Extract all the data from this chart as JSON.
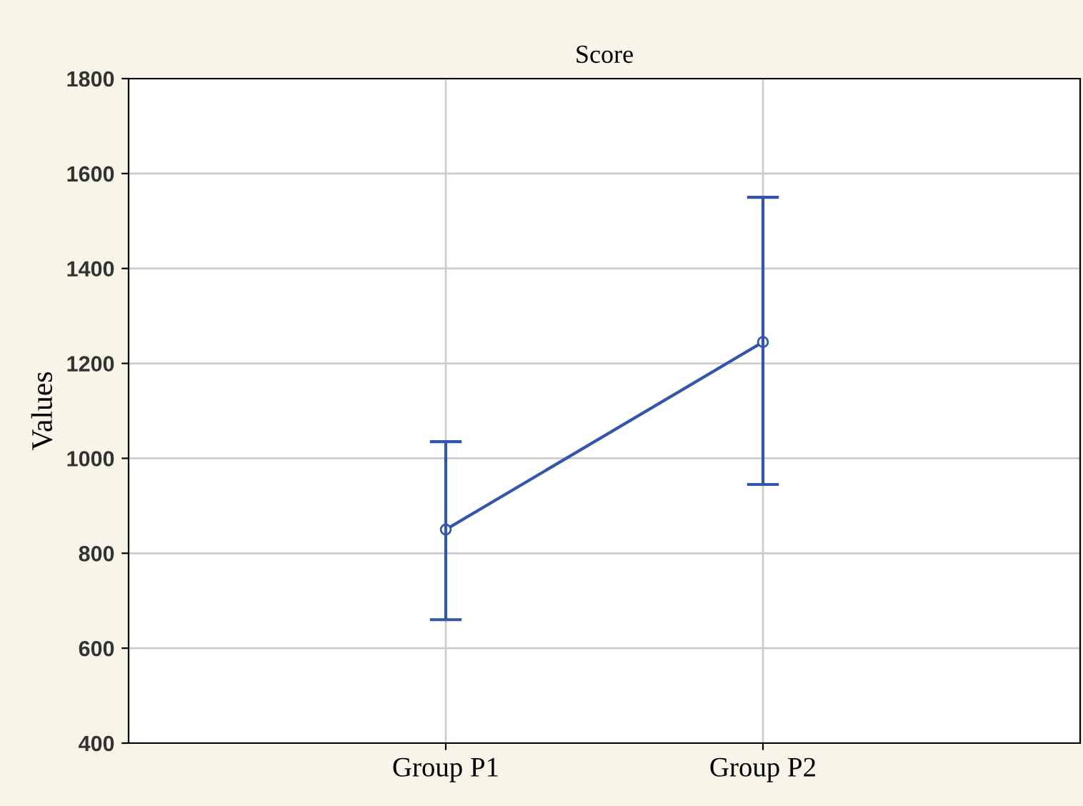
{
  "chart_data": {
    "type": "line",
    "title": "Score",
    "ylabel": "Values",
    "categories": [
      "Group P1",
      "Group P2"
    ],
    "series": [
      {
        "color": "#3355aa",
        "values": [
          850,
          1245
        ],
        "errors": [
          [
            660,
            1035
          ],
          [
            945,
            1550
          ]
        ]
      }
    ],
    "ylim": [
      400,
      1800
    ],
    "yticks": [
      400,
      600,
      800,
      1000,
      1200,
      1400,
      1600,
      1800
    ],
    "grid": true,
    "marker": "circle",
    "line_style": "solid",
    "legend": false
  }
}
